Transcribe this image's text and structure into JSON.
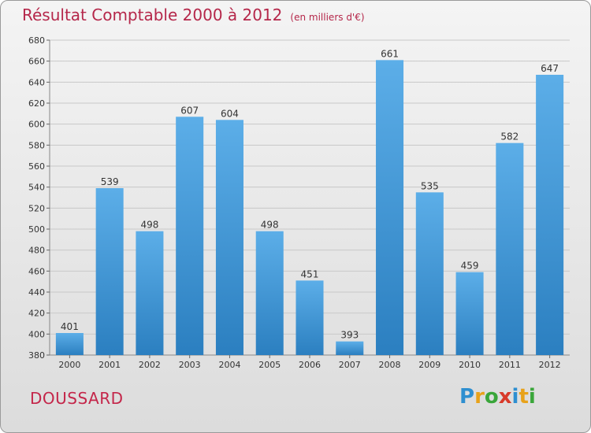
{
  "title": "Résultat Comptable 2000 à 2012",
  "unit": "(en milliers d'€)",
  "place": "DOUSSARD",
  "logo": {
    "text": "Proxiti",
    "letters": [
      {
        "ch": "P",
        "color": "#2e8fd0"
      },
      {
        "ch": "r",
        "color": "#e8a21a"
      },
      {
        "ch": "o",
        "color": "#3aa63a"
      },
      {
        "ch": "x",
        "color": "#d83a2a"
      },
      {
        "ch": "i",
        "color": "#2e8fd0"
      },
      {
        "ch": "t",
        "color": "#e8a21a"
      },
      {
        "ch": "i",
        "color": "#3aa63a"
      }
    ]
  },
  "colors": {
    "bar_top": "#5caee8",
    "bar_bottom": "#2b7fc0",
    "title": "#b5274a",
    "text": "#333333"
  },
  "chart_data": {
    "type": "bar",
    "title": "Résultat Comptable 2000 à 2012",
    "subtitle": "(en milliers d'€)",
    "categories": [
      "2000",
      "2001",
      "2002",
      "2003",
      "2004",
      "2005",
      "2006",
      "2007",
      "2008",
      "2009",
      "2010",
      "2011",
      "2012"
    ],
    "values": [
      401,
      539,
      498,
      607,
      604,
      498,
      451,
      393,
      661,
      535,
      459,
      582,
      647
    ],
    "ylim": [
      380,
      680
    ],
    "yticks": [
      380,
      400,
      420,
      440,
      460,
      480,
      500,
      520,
      540,
      560,
      580,
      600,
      620,
      640,
      660,
      680
    ],
    "grid": true,
    "xlabel": "",
    "ylabel": ""
  }
}
